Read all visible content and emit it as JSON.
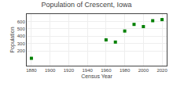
{
  "chart_data": {
    "type": "scatter",
    "title": "Population of Crescent, Iowa",
    "xlabel": "Census Year",
    "ylabel": "Population",
    "x": [
      1880,
      1960,
      1970,
      1980,
      1990,
      2000,
      2010,
      2020
    ],
    "values": [
      100,
      350,
      320,
      470,
      560,
      530,
      610,
      625
    ],
    "color": "#008000",
    "marker": "square",
    "xlim": [
      1875,
      2025
    ],
    "ylim": [
      0,
      700
    ],
    "xticks": [
      1880,
      1900,
      1920,
      1940,
      1960,
      1980,
      2000,
      2020
    ],
    "yticks": [
      200,
      300,
      400,
      500,
      600
    ],
    "grid": true
  }
}
